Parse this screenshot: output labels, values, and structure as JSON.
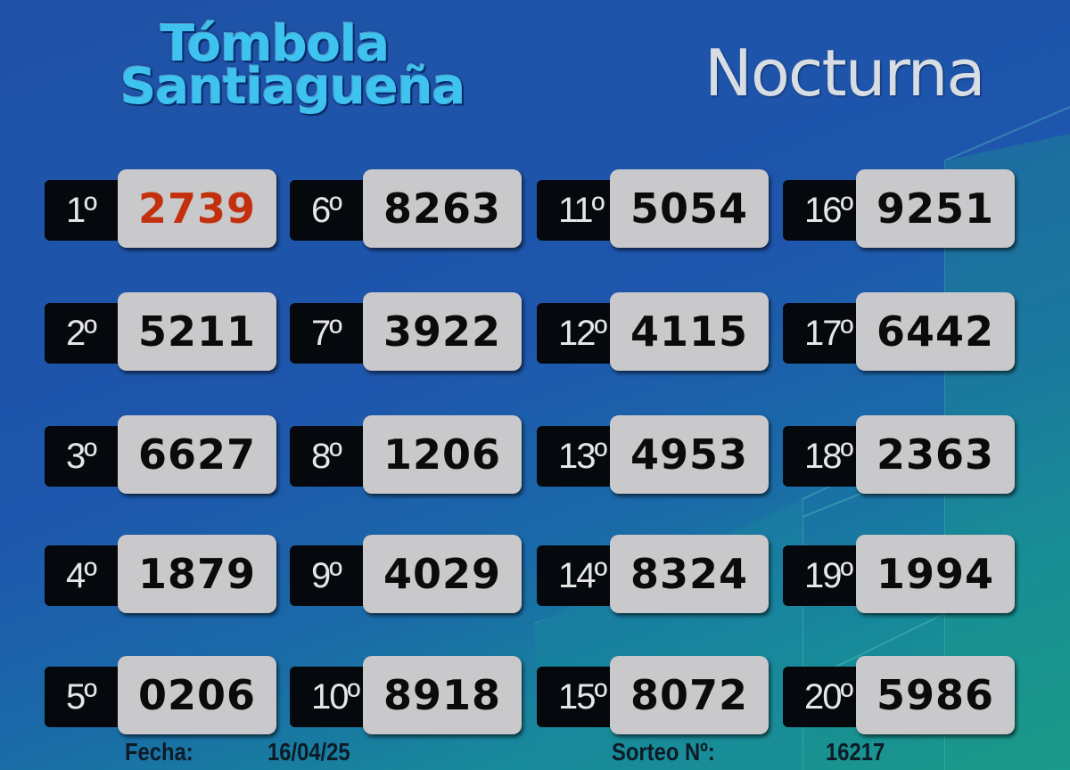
{
  "logo": {
    "line1": "Tómbola",
    "line2": "Santiagueña"
  },
  "title": "Nocturna",
  "colors": {
    "background": "#1f52a6",
    "highlight_number": "#c3300e",
    "number_box": "#c9c9cb",
    "position_box": "#05080c"
  },
  "results": [
    {
      "pos": "1º",
      "num": "2739"
    },
    {
      "pos": "2º",
      "num": "5211"
    },
    {
      "pos": "3º",
      "num": "6627"
    },
    {
      "pos": "4º",
      "num": "1879"
    },
    {
      "pos": "5º",
      "num": "0206"
    },
    {
      "pos": "6º",
      "num": "8263"
    },
    {
      "pos": "7º",
      "num": "3922"
    },
    {
      "pos": "8º",
      "num": "1206"
    },
    {
      "pos": "9º",
      "num": "4029"
    },
    {
      "pos": "10º",
      "num": "8918"
    },
    {
      "pos": "11º",
      "num": "5054"
    },
    {
      "pos": "12º",
      "num": "4115"
    },
    {
      "pos": "13º",
      "num": "4953"
    },
    {
      "pos": "14º",
      "num": "8324"
    },
    {
      "pos": "15º",
      "num": "8072"
    },
    {
      "pos": "16º",
      "num": "9251"
    },
    {
      "pos": "17º",
      "num": "6442"
    },
    {
      "pos": "18º",
      "num": "2363"
    },
    {
      "pos": "19º",
      "num": "1994"
    },
    {
      "pos": "20º",
      "num": "5986"
    }
  ],
  "footer": {
    "date_label": "Fecha:",
    "date": "16/04/25",
    "draw_label": "Sorteo Nº:",
    "draw_number": "16217"
  }
}
